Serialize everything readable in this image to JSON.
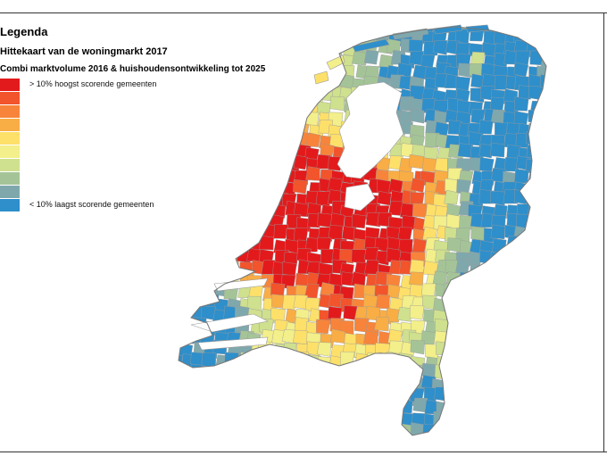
{
  "legend": {
    "title": "Legenda",
    "subtitle": "Hittekaart van de woningmarkt 2017",
    "note": "Combi marktvolume 2016 & huishoudensontwikkeling tot 2025",
    "classes": [
      {
        "color": "#e31a1c",
        "label": "> 10% hoogst scorende gemeenten"
      },
      {
        "color": "#f2542c",
        "label": ""
      },
      {
        "color": "#f7843a",
        "label": ""
      },
      {
        "color": "#f9ad45",
        "label": ""
      },
      {
        "color": "#fde06a",
        "label": ""
      },
      {
        "color": "#f3ef8a",
        "label": ""
      },
      {
        "color": "#cfe08e",
        "label": ""
      },
      {
        "color": "#a4c497",
        "label": ""
      },
      {
        "color": "#7fa8ad",
        "label": ""
      },
      {
        "color": "#2e8fcb",
        "label": "< 10% laagst scorende gemeenten"
      }
    ]
  },
  "map": {
    "colors": {
      "water": "#ffffff",
      "border": "#9a9a9a",
      "hot": "#e31a1c",
      "warm": "#f7843a",
      "mild": "#fde06a",
      "cool": "#a4c497",
      "cold": "#2e8fcb"
    }
  }
}
